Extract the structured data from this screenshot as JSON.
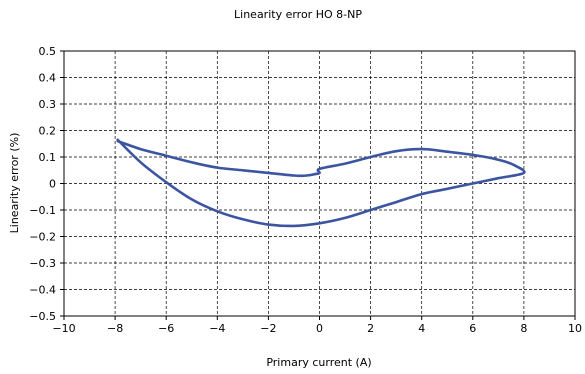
{
  "chart_data": {
    "type": "line",
    "title": "Linearity error HO 8-NP",
    "xlabel": "Primary current (A)",
    "ylabel": "Linearity error (%)",
    "xlim": [
      -10,
      10
    ],
    "ylim": [
      -0.5,
      0.5
    ],
    "x_ticks": [
      -10,
      -8,
      -6,
      -4,
      -2,
      0,
      2,
      4,
      6,
      8,
      10
    ],
    "x_tick_labels": [
      "−10",
      "−8",
      "−6",
      "−4",
      "−2",
      "0",
      "2",
      "4",
      "6",
      "8",
      "10"
    ],
    "y_ticks": [
      0.5,
      0.4,
      0.3,
      0.2,
      0.1,
      0,
      -0.1,
      -0.2,
      -0.3,
      -0.4,
      -0.5
    ],
    "y_tick_labels": [
      "0.5",
      "0.4",
      "0.3",
      "0.2",
      "0.1",
      "0",
      "−0.1",
      "−0.2",
      "−0.3",
      "−0.4",
      "−0.5"
    ],
    "grid": true,
    "series": [
      {
        "color": "#3c55a0",
        "points": [
          [
            -7.9,
            0.16
          ],
          [
            -7.0,
            0.13
          ],
          [
            -6.0,
            0.105
          ],
          [
            -5.0,
            0.08
          ],
          [
            -4.0,
            0.06
          ],
          [
            -3.0,
            0.05
          ],
          [
            -2.0,
            0.04
          ],
          [
            -1.0,
            0.03
          ],
          [
            -0.5,
            0.03
          ],
          [
            -0.2,
            0.035
          ],
          [
            0.0,
            0.04
          ],
          [
            0.0,
            0.055
          ],
          [
            1.0,
            0.075
          ],
          [
            2.0,
            0.1
          ],
          [
            3.0,
            0.122
          ],
          [
            4.0,
            0.13
          ],
          [
            5.0,
            0.12
          ],
          [
            6.0,
            0.108
          ],
          [
            7.0,
            0.09
          ],
          [
            7.6,
            0.07
          ],
          [
            8.0,
            0.04
          ],
          [
            7.0,
            0.02
          ],
          [
            6.0,
            0.0
          ],
          [
            5.0,
            -0.02
          ],
          [
            4.0,
            -0.04
          ],
          [
            3.0,
            -0.07
          ],
          [
            2.0,
            -0.1
          ],
          [
            1.0,
            -0.13
          ],
          [
            0.0,
            -0.15
          ],
          [
            -1.0,
            -0.16
          ],
          [
            -2.0,
            -0.155
          ],
          [
            -3.0,
            -0.135
          ],
          [
            -4.0,
            -0.105
          ],
          [
            -5.0,
            -0.06
          ],
          [
            -6.0,
            0.005
          ],
          [
            -7.0,
            0.08
          ],
          [
            -7.9,
            0.165
          ]
        ]
      }
    ]
  }
}
